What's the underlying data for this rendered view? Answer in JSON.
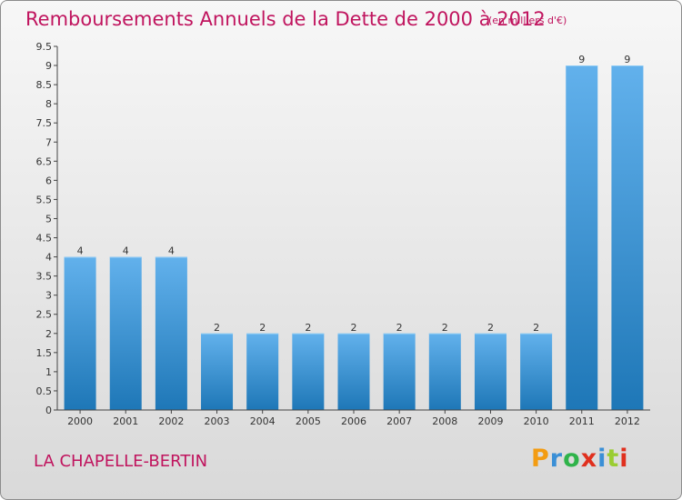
{
  "header": {
    "title": "Remboursements Annuels de la Dette de 2000 à 2012",
    "units": "(en milliers d'€)"
  },
  "footer": {
    "commune": "LA CHAPELLE-BERTIN",
    "logo_text": "Proxiti",
    "logo_colors": [
      "#f39c12",
      "#3a8fd6",
      "#2fb34a",
      "#e0301e",
      "#3a8fd6",
      "#9acd32",
      "#e0301e"
    ]
  },
  "colors": {
    "title": "#c0145e",
    "bar_top": "#62b1ec",
    "bar_bottom": "#1e77b7",
    "axis": "#444444",
    "grid": "#cfcfcf"
  },
  "chart_data": {
    "type": "bar",
    "title": "Remboursements Annuels de la Dette de 2000 à 2012",
    "categories": [
      "2000",
      "2001",
      "2002",
      "2003",
      "2004",
      "2005",
      "2006",
      "2007",
      "2008",
      "2009",
      "2010",
      "2011",
      "2012"
    ],
    "values": [
      4,
      4,
      4,
      2,
      2,
      2,
      2,
      2,
      2,
      2,
      2,
      9,
      9
    ],
    "data_labels": [
      "4",
      "4",
      "4",
      "2",
      "2",
      "2",
      "2",
      "2",
      "2",
      "2",
      "2",
      "9",
      "9"
    ],
    "ylim": [
      0,
      9.5
    ],
    "yticks": [
      "0",
      "0.5",
      "1",
      "1.5",
      "2",
      "2.5",
      "3",
      "3.5",
      "4",
      "4.5",
      "5",
      "5.5",
      "6",
      "6.5",
      "7",
      "7.5",
      "8",
      "8.5",
      "9",
      "9.5"
    ],
    "grid": false,
    "legend": "none"
  }
}
